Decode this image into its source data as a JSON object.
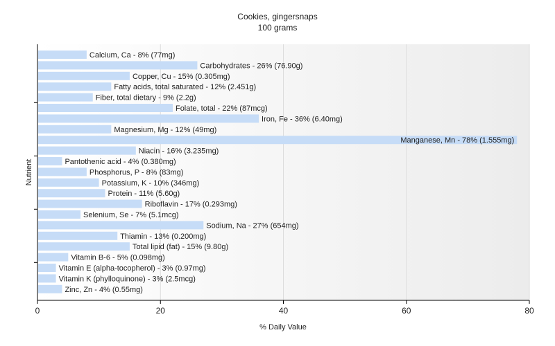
{
  "chart_data": {
    "type": "bar",
    "orientation": "horizontal",
    "title": "Cookies, gingersnaps",
    "subtitle": "100 grams",
    "xlabel": "% Daily Value",
    "ylabel": "Nutrient",
    "xlim": [
      0,
      80
    ],
    "xticks": [
      0,
      20,
      40,
      60,
      80
    ],
    "grid": true,
    "colors": {
      "bar": "#c6dcf7",
      "plot_bg_start": "#ffffff",
      "plot_bg_end": "#ececec",
      "grid": "#dddddd",
      "axis": "#000000"
    },
    "categories": [
      "Calcium, Ca",
      "Carbohydrates",
      "Copper, Cu",
      "Fatty acids, total saturated",
      "Fiber, total dietary",
      "Folate, total",
      "Iron, Fe",
      "Magnesium, Mg",
      "Manganese, Mn",
      "Niacin",
      "Pantothenic acid",
      "Phosphorus, P",
      "Potassium, K",
      "Protein",
      "Riboflavin",
      "Selenium, Se",
      "Sodium, Na",
      "Thiamin",
      "Total lipid (fat)",
      "Vitamin B-6",
      "Vitamin E (alpha-tocopherol)",
      "Vitamin K (phylloquinone)",
      "Zinc, Zn"
    ],
    "values": [
      8,
      26,
      15,
      12,
      9,
      22,
      36,
      12,
      78,
      16,
      4,
      8,
      10,
      11,
      17,
      7,
      27,
      13,
      15,
      5,
      3,
      3,
      4
    ],
    "labels": [
      "Calcium, Ca - 8% (77mg)",
      "Carbohydrates - 26% (76.90g)",
      "Copper, Cu - 15% (0.305mg)",
      "Fatty acids, total saturated - 12% (2.451g)",
      "Fiber, total dietary - 9% (2.2g)",
      "Folate, total - 22% (87mcg)",
      "Iron, Fe - 36% (6.40mg)",
      "Magnesium, Mg - 12% (49mg)",
      "Manganese, Mn - 78% (1.555mg)",
      "Niacin - 16% (3.235mg)",
      "Pantothenic acid - 4% (0.380mg)",
      "Phosphorus, P - 8% (83mg)",
      "Potassium, K - 10% (346mg)",
      "Protein - 11% (5.60g)",
      "Riboflavin - 17% (0.293mg)",
      "Selenium, Se - 7% (5.1mcg)",
      "Sodium, Na - 27% (654mg)",
      "Thiamin - 13% (0.200mg)",
      "Total lipid (fat) - 15% (9.80g)",
      "Vitamin B-6 - 5% (0.098mg)",
      "Vitamin E (alpha-tocopherol) - 3% (0.97mg)",
      "Vitamin K (phylloquinone) - 3% (2.5mcg)",
      "Zinc, Zn - 4% (0.55mg)"
    ]
  }
}
